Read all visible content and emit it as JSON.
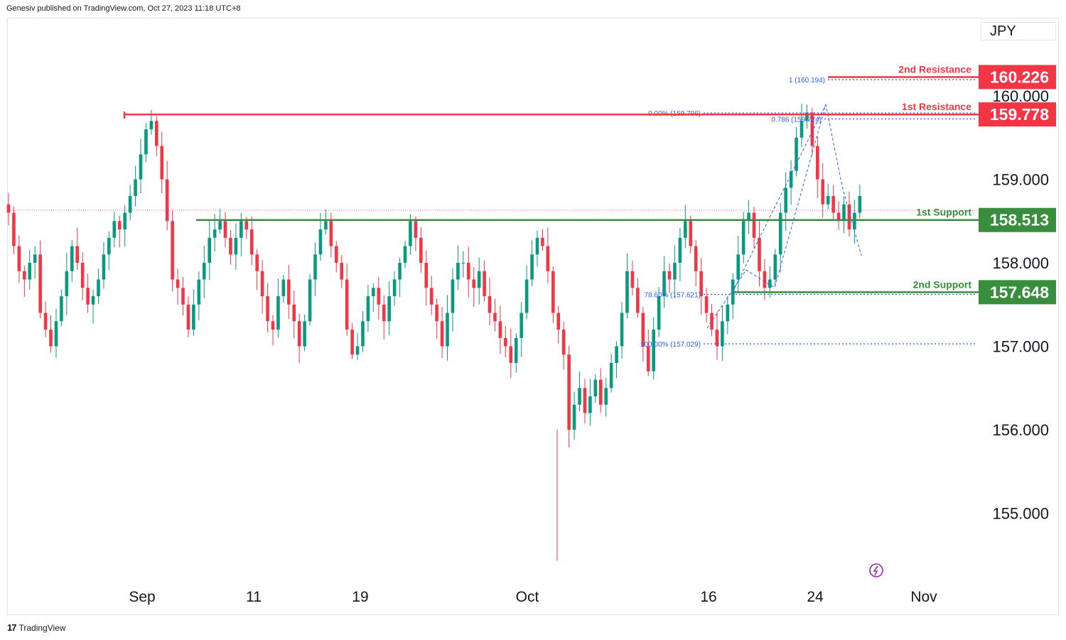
{
  "header": {
    "publisher": "Genesiv published on TradingView.com, Oct 27, 2023 11:18 UTC+8"
  },
  "currency_label": "JPY",
  "footer": {
    "brand": "TradingView",
    "logo_glyph": "17"
  },
  "colors": {
    "up": "#089981",
    "down": "#f23645",
    "resistance": "#f23645",
    "support": "#388e3c",
    "fib": "#2962ff",
    "alert": "#9c27b0"
  },
  "chart_data": {
    "type": "candlestick",
    "symbol_currency": "JPY",
    "y_ticks": [
      "160.000",
      "159.000",
      "158.000",
      "157.000",
      "156.000",
      "155.000"
    ],
    "x_ticks": [
      "Sep",
      "11",
      "19",
      "Oct",
      "16",
      "24",
      "Nov"
    ],
    "ylim": [
      154.4,
      160.8
    ],
    "levels": [
      {
        "name": "2nd Resistance",
        "value": 160.226,
        "label": "160.226",
        "kind": "resistance"
      },
      {
        "name": "1st Resistance",
        "value": 159.778,
        "label": "159.778",
        "kind": "resistance"
      },
      {
        "name": "1st Support",
        "value": 158.513,
        "label": "158.513",
        "kind": "support"
      },
      {
        "name": "2nd Support",
        "value": 157.648,
        "label": "157.648",
        "kind": "support"
      }
    ],
    "fib_labels": [
      {
        "text": "1 (160.194)",
        "value": 160.194
      },
      {
        "text": "0.00% (159.796)",
        "value": 159.796
      },
      {
        "text": "0.786 (159.724)",
        "value": 159.724
      },
      {
        "text": "78.60% (157.621)",
        "value": 157.621
      },
      {
        "text": "100.00% (157.029)",
        "value": 157.029
      }
    ],
    "closes": [
      158.6,
      158.2,
      157.9,
      157.8,
      158.0,
      158.1,
      157.4,
      157.2,
      157.0,
      157.3,
      157.6,
      157.9,
      158.2,
      158.0,
      157.7,
      157.5,
      157.6,
      157.8,
      158.1,
      158.3,
      158.5,
      158.4,
      158.6,
      158.8,
      159.0,
      159.3,
      159.6,
      159.7,
      159.4,
      159.0,
      158.5,
      157.8,
      157.7,
      157.5,
      157.2,
      157.5,
      157.8,
      158.0,
      158.3,
      158.4,
      158.5,
      158.3,
      158.1,
      158.3,
      158.5,
      158.4,
      158.1,
      157.9,
      157.6,
      157.3,
      157.2,
      157.6,
      157.8,
      157.5,
      157.3,
      157.0,
      157.3,
      157.8,
      158.1,
      158.4,
      158.5,
      158.2,
      158.0,
      157.8,
      157.2,
      156.9,
      157.0,
      157.3,
      157.6,
      157.7,
      157.5,
      157.3,
      157.6,
      157.8,
      158.0,
      158.2,
      158.5,
      158.3,
      158.0,
      157.7,
      157.5,
      157.3,
      157.0,
      157.4,
      157.8,
      158.0,
      158.0,
      157.8,
      157.7,
      157.9,
      157.6,
      157.4,
      157.3,
      157.1,
      157.0,
      156.8,
      157.1,
      157.4,
      157.8,
      158.1,
      158.3,
      158.2,
      157.9,
      157.4,
      157.2,
      156.9,
      156.0,
      156.3,
      156.5,
      156.2,
      156.4,
      156.6,
      156.3,
      156.5,
      156.8,
      157.0,
      157.4,
      157.9,
      157.7,
      157.4,
      157.0,
      156.7,
      157.2,
      157.6,
      157.9,
      157.8,
      158.0,
      158.3,
      158.5,
      158.2,
      157.9,
      157.6,
      157.4,
      157.2,
      157.0,
      157.3,
      157.5,
      157.8,
      158.1,
      158.5,
      158.6,
      158.3,
      157.9,
      157.7,
      157.8,
      158.1,
      158.6,
      158.9,
      159.1,
      159.5,
      159.7,
      159.8,
      159.4,
      159.0,
      158.7,
      158.8,
      158.6,
      158.5,
      158.7,
      158.4,
      158.6,
      158.8
    ]
  }
}
